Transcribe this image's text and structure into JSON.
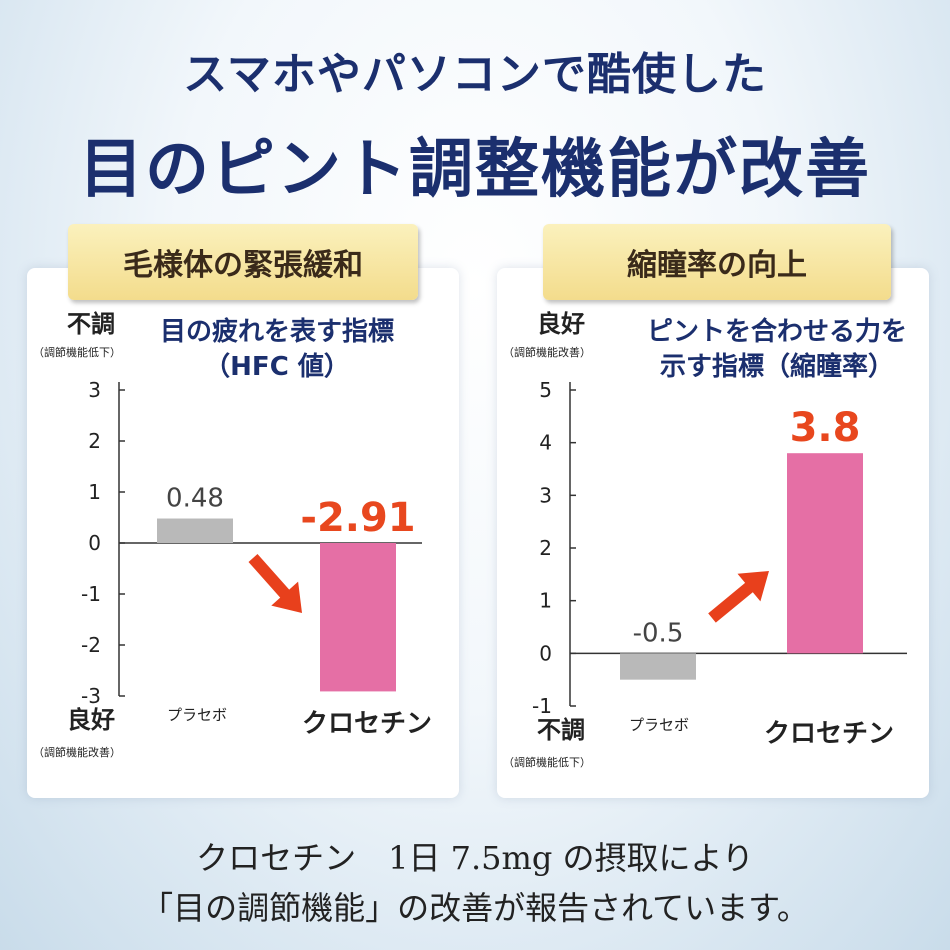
{
  "headline": {
    "line1": "スマホやパソコンで酷使した",
    "line2": "目のピント調整機能が改善"
  },
  "footer": {
    "line1": "クロセチン　1日 7.5mg の摂取により",
    "line2": "「目の調節機能」の改善が報告されています。"
  },
  "colors": {
    "placebo": "#b9b9b9",
    "crocetin": "#e56fa5",
    "value_highlight": "#e8471e",
    "arrow": "#e8401c",
    "text_dark": "#222222",
    "tab_bg": "#f6e39c",
    "headline": "#1b2f6e"
  },
  "chart_data": [
    {
      "type": "bar",
      "tab_label": "毛様体の緊張緩和",
      "title_lines": [
        "目の疲れを表す指標",
        "（HFC 値）"
      ],
      "top_label": "不調",
      "top_sublabel": "（調節機能低下）",
      "bottom_label": "良好",
      "bottom_sublabel": "（調節機能改善）",
      "categories": [
        "プラセボ",
        "クロセチン"
      ],
      "values": [
        0.48,
        -2.91
      ],
      "value_labels": [
        "0.48",
        "-2.91"
      ],
      "ylim": [
        -3,
        3
      ],
      "yticks": [
        "3",
        "2",
        "1",
        "0",
        "-1",
        "-2",
        "-3"
      ],
      "arrow_direction": "down"
    },
    {
      "type": "bar",
      "tab_label": "縮瞳率の向上",
      "title_lines": [
        "ピントを合わせる力を",
        "示す指標（縮瞳率）"
      ],
      "top_label": "良好",
      "top_sublabel": "（調節機能改善）",
      "bottom_label": "不調",
      "bottom_sublabel": "（調節機能低下）",
      "categories": [
        "プラセボ",
        "クロセチン"
      ],
      "values": [
        -0.5,
        3.8
      ],
      "value_labels": [
        "-0.5",
        "3.8"
      ],
      "ylim": [
        -1,
        5
      ],
      "yticks": [
        "5",
        "4",
        "3",
        "2",
        "1",
        "0",
        "-1"
      ],
      "arrow_direction": "up"
    }
  ]
}
